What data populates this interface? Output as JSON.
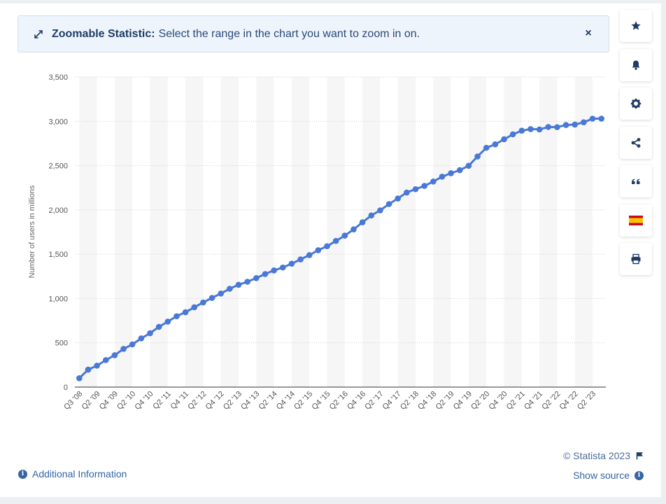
{
  "banner": {
    "title": "Zoomable Statistic:",
    "text": "Select the range in the chart you want to zoom in on.",
    "close_label": "×"
  },
  "toolbar": {
    "icons": [
      "star-icon",
      "bell-icon",
      "gear-icon",
      "share-icon",
      "quote-icon",
      "spain-flag-icon",
      "print-icon"
    ]
  },
  "footer": {
    "copyright": "© Statista 2023",
    "additional_info": "Additional Information",
    "show_source": "Show source"
  },
  "colors": {
    "line": "#4a78d6",
    "grid_band": "#f6f6f6",
    "accent": "#3465a4"
  },
  "chart_data": {
    "type": "line",
    "title": "",
    "xlabel": "",
    "ylabel": "Number of users in millions",
    "ylim": [
      0,
      3500
    ],
    "yticks": [
      0,
      500,
      1000,
      1500,
      2000,
      2500,
      3000,
      3500
    ],
    "ytick_labels": [
      "0",
      "500",
      "1,000",
      "1,500",
      "2,000",
      "2,500",
      "3,000",
      "3,500"
    ],
    "tick_labels": [
      "Q3 '08",
      "Q2 '09",
      "Q4 '09",
      "Q2 '10",
      "Q4 '10",
      "Q2 '11",
      "Q4 '11",
      "Q2 '12",
      "Q4 '12",
      "Q2 '13",
      "Q4 '13",
      "Q2 '14",
      "Q4 '14",
      "Q2 '15",
      "Q4 '15",
      "Q2 '16",
      "Q4 '16",
      "Q2 '17",
      "Q4 '17",
      "Q2 '18",
      "Q4 '18",
      "Q2 '19",
      "Q4 '19",
      "Q2 '20",
      "Q4 '20",
      "Q2 '21",
      "Q4 '21",
      "Q2 '22",
      "Q4 '22",
      "Q2 '23"
    ],
    "categories": [
      "Q3 '08",
      "Q4 '08",
      "Q1 '09",
      "Q2 '09",
      "Q3 '09",
      "Q4 '09",
      "Q1 '10",
      "Q2 '10",
      "Q3 '10",
      "Q4 '10",
      "Q1 '11",
      "Q2 '11",
      "Q3 '11",
      "Q4 '11",
      "Q1 '12",
      "Q2 '12",
      "Q3 '12",
      "Q4 '12",
      "Q1 '13",
      "Q2 '13",
      "Q3 '13",
      "Q4 '13",
      "Q1 '14",
      "Q2 '14",
      "Q3 '14",
      "Q4 '14",
      "Q1 '15",
      "Q2 '15",
      "Q3 '15",
      "Q4 '15",
      "Q1 '16",
      "Q2 '16",
      "Q3 '16",
      "Q4 '16",
      "Q1 '17",
      "Q2 '17",
      "Q3 '17",
      "Q4 '17",
      "Q1 '18",
      "Q2 '18",
      "Q3 '18",
      "Q4 '18",
      "Q1 '19",
      "Q2 '19",
      "Q3 '19",
      "Q4 '19",
      "Q1 '20",
      "Q2 '20",
      "Q3 '20",
      "Q4 '20",
      "Q1 '21",
      "Q2 '21",
      "Q3 '21",
      "Q4 '21",
      "Q1 '22",
      "Q2 '22",
      "Q3 '22",
      "Q4 '22",
      "Q1 '23",
      "Q2 '23"
    ],
    "series": [
      {
        "values": [
          100,
          197,
          242,
          305,
          360,
          431,
          482,
          550,
          608,
          680,
          739,
          800,
          845,
          901,
          955,
          1007,
          1056,
          1110,
          1155,
          1189,
          1230,
          1276,
          1317,
          1350,
          1393,
          1441,
          1490,
          1545,
          1590,
          1650,
          1710,
          1780,
          1860,
          1937,
          1995,
          2066,
          2129,
          2196,
          2234,
          2271,
          2320,
          2375,
          2414,
          2449,
          2498,
          2603,
          2701,
          2740,
          2797,
          2853,
          2894,
          2912,
          2908,
          2936,
          2934,
          2958,
          2963,
          2989,
          3030,
          3030
        ]
      }
    ],
    "grid": true,
    "legend": "none"
  }
}
